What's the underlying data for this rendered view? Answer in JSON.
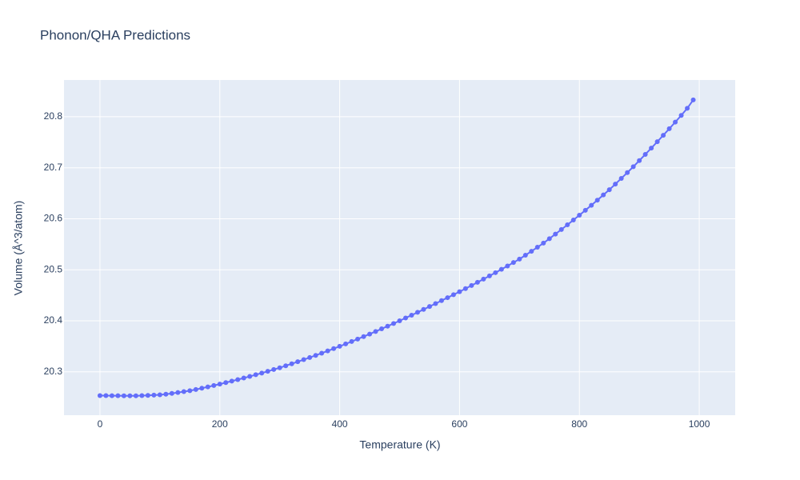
{
  "chart_data": {
    "type": "line",
    "title": "Phonon/QHA Predictions",
    "xlabel": "Temperature (K)",
    "ylabel": "Volume (Å^3/atom)",
    "x": [
      0,
      10,
      20,
      30,
      40,
      50,
      60,
      70,
      80,
      90,
      100,
      110,
      120,
      130,
      140,
      150,
      160,
      170,
      180,
      190,
      200,
      210,
      220,
      230,
      240,
      250,
      260,
      270,
      280,
      290,
      300,
      310,
      320,
      330,
      340,
      350,
      360,
      370,
      380,
      390,
      400,
      410,
      420,
      430,
      440,
      450,
      460,
      470,
      480,
      490,
      500,
      510,
      520,
      530,
      540,
      550,
      560,
      570,
      580,
      590,
      600,
      610,
      620,
      630,
      640,
      650,
      660,
      670,
      680,
      690,
      700,
      710,
      720,
      730,
      740,
      750,
      760,
      770,
      780,
      790,
      800,
      810,
      820,
      830,
      840,
      850,
      860,
      870,
      880,
      890,
      900,
      910,
      920,
      930,
      940,
      950,
      960,
      970,
      980,
      990
    ],
    "series": [
      {
        "color": "#636efa",
        "values": [
          20.2535,
          20.2534,
          20.2533,
          20.2532,
          20.2531,
          20.253,
          20.2531,
          20.2534,
          20.2539,
          20.2544,
          20.255,
          20.2562,
          20.2577,
          20.2594,
          20.2612,
          20.263,
          20.2654,
          20.2679,
          20.2705,
          20.2732,
          20.276,
          20.2789,
          20.2818,
          20.2848,
          20.2879,
          20.291,
          20.2943,
          20.2976,
          20.301,
          20.3045,
          20.308,
          20.3119,
          20.3158,
          20.3198,
          20.3239,
          20.328,
          20.3323,
          20.3366,
          20.341,
          20.3455,
          20.35,
          20.3547,
          20.3594,
          20.3642,
          20.3691,
          20.374,
          20.3791,
          20.3843,
          20.3895,
          20.3947,
          20.4,
          20.4055,
          20.411,
          20.4166,
          20.4223,
          20.428,
          20.4338,
          20.4396,
          20.4454,
          20.4512,
          20.457,
          20.4631,
          20.4692,
          20.4754,
          20.4817,
          20.488,
          20.4944,
          20.5009,
          20.5075,
          20.5142,
          20.521,
          20.5286,
          20.5363,
          20.5442,
          20.5523,
          20.561,
          20.57,
          20.579,
          20.5882,
          20.5975,
          20.607,
          20.6167,
          20.6265,
          20.6365,
          20.6467,
          20.657,
          20.668,
          20.6792,
          20.6905,
          20.7021,
          20.714,
          20.7262,
          20.7385,
          20.751,
          20.7637,
          20.7765,
          20.7895,
          20.8027,
          20.8165,
          20.833
        ]
      }
    ],
    "xlim": [
      -60,
      1060
    ],
    "xticks": [
      0,
      200,
      400,
      600,
      800,
      1000
    ],
    "ylim": [
      20.215,
      20.872
    ],
    "yticks": [
      20.3,
      20.4,
      20.5,
      20.6,
      20.7,
      20.8
    ],
    "grid": true,
    "background": "#e5ecf6"
  }
}
